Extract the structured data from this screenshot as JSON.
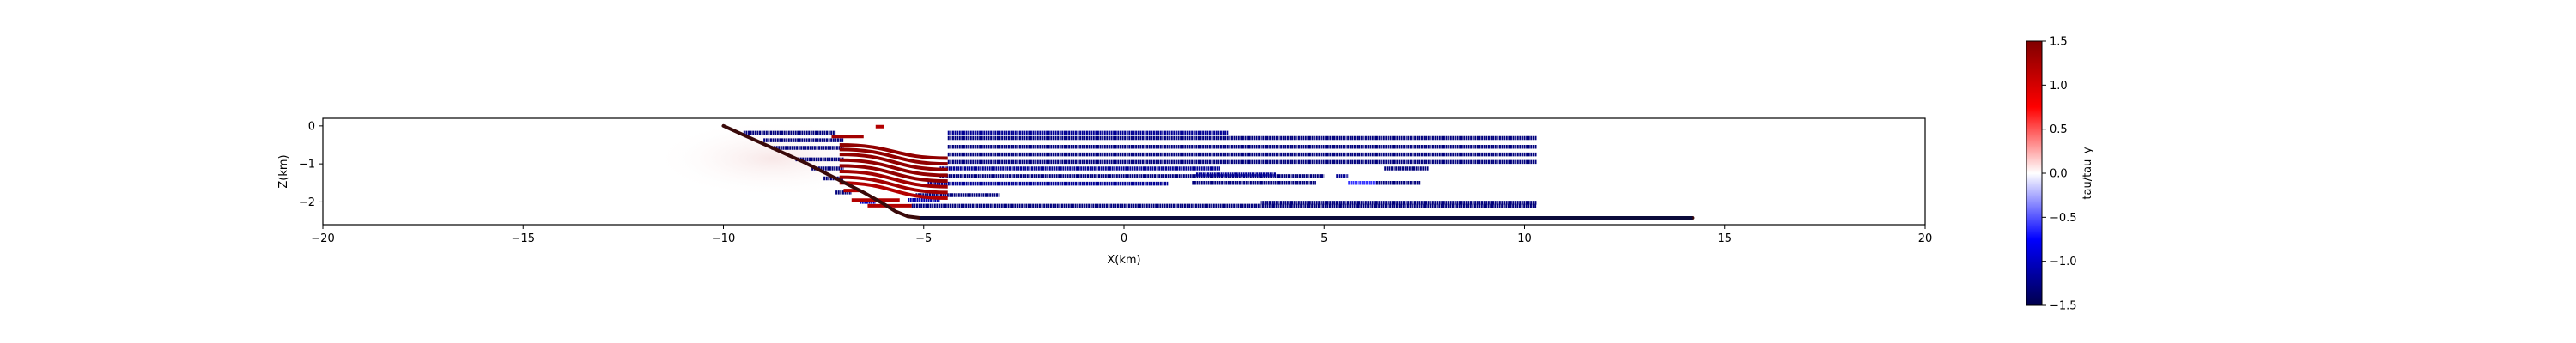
{
  "chart_data": {
    "type": "heatmap",
    "title": "",
    "xlabel": "X(km)",
    "ylabel": "Z(km)",
    "xlim": [
      -20,
      20
    ],
    "ylim": [
      -2.6,
      0.2
    ],
    "xticks": [
      "−20",
      "−15",
      "−10",
      "−5",
      "0",
      "5",
      "10",
      "15",
      "20"
    ],
    "xtick_values": [
      -20,
      -15,
      -10,
      -5,
      0,
      5,
      10,
      15,
      20
    ],
    "yticks": [
      "0",
      "−1",
      "−2"
    ],
    "ytick_values": [
      0,
      -1,
      -2
    ],
    "grid": false,
    "colorbar": {
      "label": "tau/tau_y",
      "range": [
        -1.5,
        1.5
      ],
      "colormap": "seismic",
      "ticks": [
        "1.5",
        "1.0",
        "0.5",
        "0.0",
        "−0.5",
        "−1.0",
        "−1.5"
      ],
      "tick_values": [
        1.5,
        1.0,
        0.5,
        0.0,
        -0.5,
        -1.0,
        -1.5
      ]
    },
    "fault": {
      "x": [
        -10.0,
        -8.0,
        -6.5,
        -6.0,
        -5.7,
        -5.4,
        -5.1,
        14.2
      ],
      "z": [
        0.0,
        -0.95,
        -1.75,
        -2.05,
        -2.25,
        -2.38,
        -2.42,
        -2.42
      ],
      "value": 1.5
    },
    "segments": [
      {
        "x1": -9.5,
        "x2": -7.2,
        "z": -0.18,
        "v": -1.3
      },
      {
        "x1": -9.0,
        "x2": -7.0,
        "z": -0.38,
        "v": -1.3
      },
      {
        "x1": -8.8,
        "x2": -7.0,
        "z": -0.58,
        "v": -1.3
      },
      {
        "x1": -8.2,
        "x2": -7.0,
        "z": -0.88,
        "v": -1.3
      },
      {
        "x1": -7.8,
        "x2": -7.0,
        "z": -1.12,
        "v": -1.3
      },
      {
        "x1": -7.5,
        "x2": -7.0,
        "z": -1.38,
        "v": -1.3
      },
      {
        "x1": -7.2,
        "x2": -6.8,
        "z": -1.75,
        "v": -1.3
      },
      {
        "x1": -4.4,
        "x2": 2.6,
        "z": -0.18,
        "v": -1.2
      },
      {
        "x1": -4.4,
        "x2": 10.3,
        "z": -0.32,
        "v": -1.3
      },
      {
        "x1": -4.4,
        "x2": 10.3,
        "z": -0.55,
        "v": -1.3
      },
      {
        "x1": -4.4,
        "x2": 10.3,
        "z": -0.75,
        "v": -1.3
      },
      {
        "x1": -4.4,
        "x2": 10.3,
        "z": -0.95,
        "v": -1.3
      },
      {
        "x1": -4.6,
        "x2": 2.4,
        "z": -1.12,
        "v": -1.2
      },
      {
        "x1": -4.6,
        "x2": 5.0,
        "z": -1.32,
        "v": -1.3
      },
      {
        "x1": 6.5,
        "x2": 7.6,
        "z": -1.12,
        "v": -1.3
      },
      {
        "x1": 1.8,
        "x2": 3.8,
        "z": -1.28,
        "v": -1.2
      },
      {
        "x1": 5.3,
        "x2": 5.6,
        "z": -1.32,
        "v": -1.2
      },
      {
        "x1": 1.7,
        "x2": 4.8,
        "z": -1.5,
        "v": -1.3
      },
      {
        "x1": 6.3,
        "x2": 7.4,
        "z": -1.5,
        "v": -1.3
      },
      {
        "x1": 5.6,
        "x2": 6.3,
        "z": -1.5,
        "v": -0.6
      },
      {
        "x1": -4.9,
        "x2": 1.1,
        "z": -1.52,
        "v": -1.2
      },
      {
        "x1": -5.2,
        "x2": -3.1,
        "z": -1.82,
        "v": -1.3
      },
      {
        "x1": -5.4,
        "x2": -4.6,
        "z": -1.95,
        "v": -1.1
      },
      {
        "x1": -5.3,
        "x2": 10.3,
        "z": -2.1,
        "v": -1.3
      },
      {
        "x1": 3.4,
        "x2": 10.3,
        "z": -2.02,
        "v": -1.3
      },
      {
        "x1": -6.6,
        "x2": -6.2,
        "z": -2.0,
        "v": -1.0
      }
    ],
    "red_curves": [
      {
        "z_left": -0.5,
        "z_right": -0.85,
        "v": 1.4
      },
      {
        "z_left": -0.62,
        "z_right": -1.0,
        "v": 1.4
      },
      {
        "z_left": -0.75,
        "z_right": -1.15,
        "v": 1.4
      },
      {
        "z_left": -0.9,
        "z_right": -1.3,
        "v": 1.4
      },
      {
        "z_left": -1.05,
        "z_right": -1.45,
        "v": 1.4
      },
      {
        "z_left": -1.2,
        "z_right": -1.6,
        "v": 1.3
      },
      {
        "z_left": -1.35,
        "z_right": -1.75,
        "v": 1.3
      },
      {
        "z_left": -1.5,
        "z_right": -1.9,
        "v": 1.2
      }
    ],
    "red_curve_x": [
      -7.1,
      -4.4
    ],
    "red_patches": [
      {
        "x1": -7.3,
        "x2": -6.5,
        "z": -0.28,
        "v": 1.3
      },
      {
        "x1": -6.2,
        "x2": -6.0,
        "z": -0.02,
        "v": 1.2
      },
      {
        "x1": -6.8,
        "x2": -5.6,
        "z": -1.95,
        "v": 1.2
      },
      {
        "x1": -6.4,
        "x2": -5.3,
        "z": -2.1,
        "v": 1.2
      },
      {
        "x1": -7.0,
        "x2": -6.6,
        "z": -1.7,
        "v": 1.2
      }
    ]
  }
}
